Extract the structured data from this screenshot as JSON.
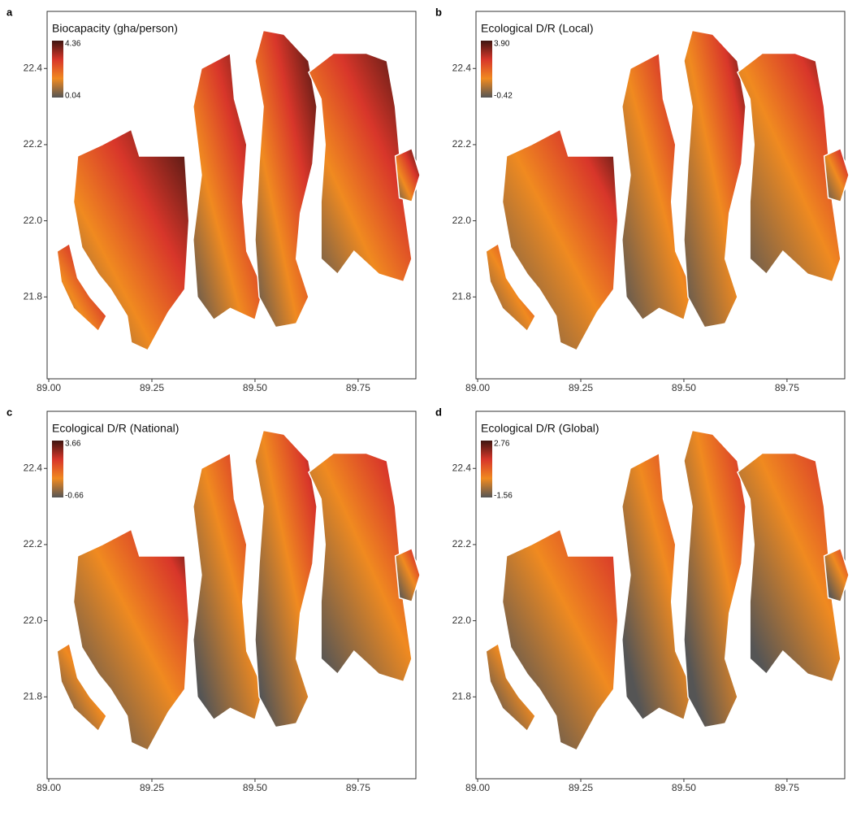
{
  "panels": [
    {
      "label": "a",
      "title": "Biocapacity (gha/person)",
      "legend_max": 4.36,
      "legend_min": 0.04
    },
    {
      "label": "b",
      "title": "Ecological D/R (Local)",
      "legend_max": {
        "value": 3.9,
        "label": "3.90"
      },
      "legend_min": -0.42
    },
    {
      "label": "c",
      "title": "Ecological D/R (National)",
      "legend_max": 3.66,
      "legend_min": -0.66
    },
    {
      "label": "d",
      "title": "Ecological D/R (Global)",
      "legend_max": 2.76,
      "legend_min": -1.56
    }
  ],
  "colormap": [
    "#555555",
    "#f08a20",
    "#d8362a",
    "#3e1510"
  ],
  "xlim": [
    88.996,
    89.89
  ],
  "ylim": [
    21.585,
    22.55
  ],
  "xticks": [
    {
      "value": 89,
      "label": "89.00"
    },
    89.25,
    {
      "value": 89.5,
      "label": "89.50"
    },
    89.75
  ],
  "yticks": [
    21.8,
    {
      "value": 22,
      "label": "22.0"
    },
    22.2,
    22.4
  ]
}
